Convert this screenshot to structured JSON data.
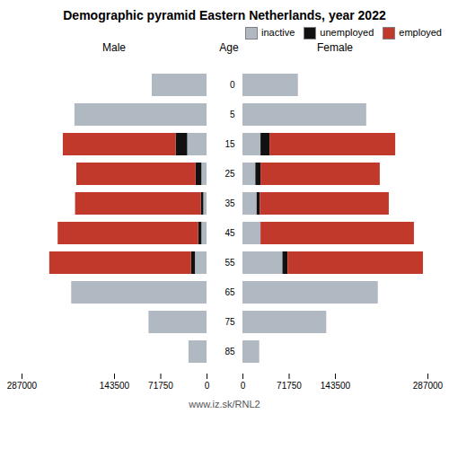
{
  "title": "Demographic pyramid Eastern Netherlands, year 2022",
  "annotations": [
    "www.iz.sk/RNL2"
  ],
  "chart_data": [
    {
      "type": "bar",
      "orientation": "horizontal",
      "stacked": true,
      "title": "Male",
      "categories": [
        85,
        75,
        65,
        55,
        45,
        35,
        25,
        15,
        5,
        0
      ],
      "series": [
        {
          "name": "inactive",
          "color": "#b0b8c1",
          "values": [
            28000,
            90000,
            210000,
            18000,
            8000,
            5000,
            8000,
            30000,
            205000,
            85000
          ]
        },
        {
          "name": "unemployed",
          "color": "#111111",
          "values": [
            0,
            0,
            0,
            6000,
            5000,
            4000,
            9000,
            18000,
            0,
            0
          ]
        },
        {
          "name": "employed",
          "color": "#c0392b",
          "values": [
            0,
            0,
            0,
            220000,
            218000,
            195000,
            185000,
            175000,
            0,
            0
          ]
        }
      ],
      "xlim": [
        287000,
        0
      ],
      "xticks": [
        0,
        71750,
        143500,
        287000
      ],
      "tick_labels": "x"
    },
    {
      "type": "bar",
      "orientation": "horizontal",
      "stacked": true,
      "title": "Female",
      "ylabel": "Age",
      "categories": [
        85,
        75,
        65,
        55,
        45,
        35,
        25,
        15,
        5,
        0
      ],
      "series": [
        {
          "name": "inactive",
          "color": "#b0b8c1",
          "values": [
            26000,
            130000,
            210000,
            62000,
            28000,
            22000,
            20000,
            28000,
            192000,
            86000
          ]
        },
        {
          "name": "unemployed",
          "color": "#111111",
          "values": [
            0,
            0,
            0,
            8000,
            0,
            5000,
            8000,
            14000,
            0,
            0
          ]
        },
        {
          "name": "employed",
          "color": "#c0392b",
          "values": [
            0,
            0,
            0,
            210000,
            238000,
            200000,
            185000,
            195000,
            0,
            0
          ]
        }
      ],
      "xlim": [
        0,
        287000
      ],
      "xticks": [
        0,
        71750,
        143500,
        287000
      ],
      "legend": "upper right"
    }
  ]
}
